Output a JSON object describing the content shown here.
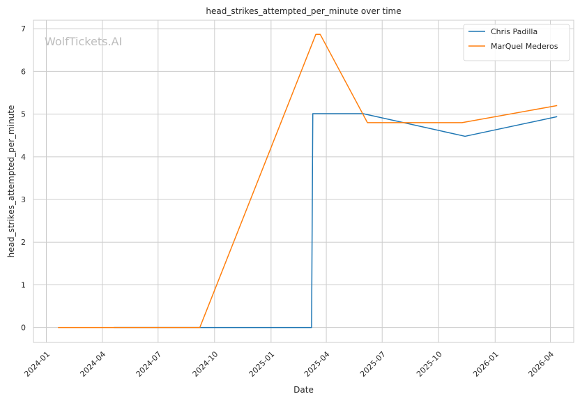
{
  "chart_data": {
    "type": "line",
    "title": "head_strikes_attempted_per_minute over time",
    "xlabel": "Date",
    "ylabel": "head_strikes_attempted_per_minute",
    "watermark": "WolfTickets.AI",
    "x_axis_type": "date",
    "xlim": [
      "2023-12-11",
      "2026-05-09"
    ],
    "ylim": [
      -0.35,
      7.2
    ],
    "x_ticks": [
      "2024-01-01",
      "2024-04-01",
      "2024-07-01",
      "2024-10-01",
      "2025-01-01",
      "2025-04-01",
      "2025-07-01",
      "2025-10-01",
      "2026-01-01",
      "2026-04-01"
    ],
    "x_tick_labels": [
      "2024-01",
      "2024-04",
      "2024-07",
      "2024-10",
      "2025-01",
      "2025-04",
      "2025-07",
      "2025-10",
      "2026-01",
      "2026-04"
    ],
    "y_ticks": [
      0,
      1,
      2,
      3,
      4,
      5,
      6,
      7
    ],
    "y_tick_labels": [
      "0",
      "1",
      "2",
      "3",
      "4",
      "5",
      "6",
      "7"
    ],
    "grid": true,
    "legend_position": "top-right",
    "series": [
      {
        "name": "Chris Padilla",
        "color": "#1f77b4",
        "points": [
          {
            "x": "2024-04-20",
            "y": 0
          },
          {
            "x": "2025-03-08",
            "y": 0
          },
          {
            "x": "2025-03-10",
            "y": 5.01
          },
          {
            "x": "2025-05-31",
            "y": 5.01
          },
          {
            "x": "2025-11-13",
            "y": 4.48
          },
          {
            "x": "2026-04-12",
            "y": 4.94
          }
        ]
      },
      {
        "name": "MarQuel Mederos",
        "color": "#ff7f0e",
        "points": [
          {
            "x": "2024-01-20",
            "y": 0
          },
          {
            "x": "2024-09-07",
            "y": 0
          },
          {
            "x": "2025-03-15",
            "y": 6.87
          },
          {
            "x": "2025-03-22",
            "y": 6.87
          },
          {
            "x": "2025-06-07",
            "y": 4.8
          },
          {
            "x": "2025-11-08",
            "y": 4.8
          },
          {
            "x": "2026-04-12",
            "y": 5.2
          }
        ]
      }
    ]
  }
}
